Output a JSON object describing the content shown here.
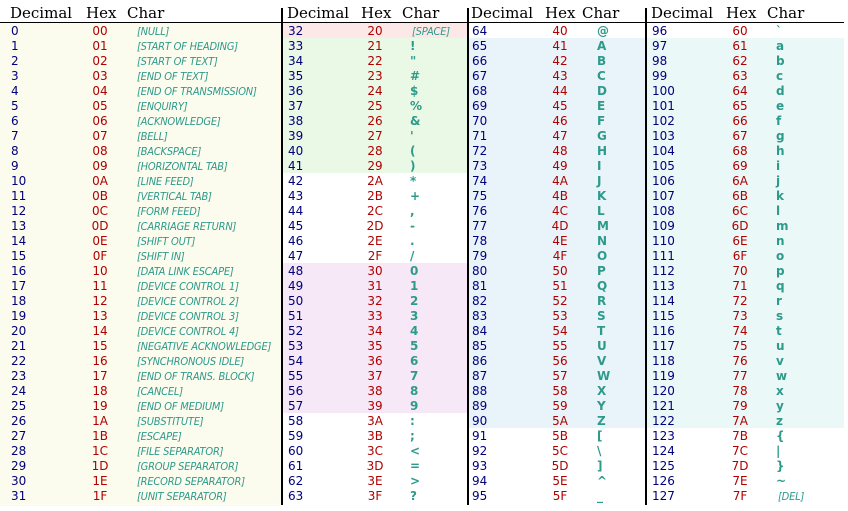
{
  "headers": [
    {
      "decimal": "Decimal",
      "hex": "Hex",
      "char": "Char"
    },
    {
      "decimal": "Decimal",
      "hex": "Hex",
      "char": "Char"
    },
    {
      "decimal": "Decimal",
      "hex": "Hex",
      "char": "Char"
    },
    {
      "decimal": "Decimal",
      "hex": "Hex",
      "char": "Char"
    }
  ],
  "colors": {
    "decimal": "#00007a",
    "hex": "#b00000",
    "char": "#2e9a8a",
    "band_control": "#fbfbee",
    "band_space": "#fde8e8",
    "band_punct": "#eaf8e6",
    "band_digits": "#f6e8f6",
    "band_upper": "#e8f4fa",
    "band_lower": "#eaf8f8"
  },
  "columns": [
    {
      "rows": [
        {
          "dec": "0",
          "hex": "00",
          "char": "[NULL]"
        },
        {
          "dec": "1",
          "hex": "01",
          "char": "[START OF HEADING]"
        },
        {
          "dec": "2",
          "hex": "02",
          "char": "[START OF TEXT]"
        },
        {
          "dec": "3",
          "hex": "03",
          "char": "[END OF TEXT]"
        },
        {
          "dec": "4",
          "hex": "04",
          "char": "[END OF TRANSMISSION]"
        },
        {
          "dec": "5",
          "hex": "05",
          "char": "[ENQUIRY]"
        },
        {
          "dec": "6",
          "hex": "06",
          "char": "[ACKNOWLEDGE]"
        },
        {
          "dec": "7",
          "hex": "07",
          "char": "[BELL]"
        },
        {
          "dec": "8",
          "hex": "08",
          "char": "[BACKSPACE]"
        },
        {
          "dec": "9",
          "hex": "09",
          "char": "[HORIZONTAL TAB]"
        },
        {
          "dec": "10",
          "hex": "0A",
          "char": "[LINE FEED]"
        },
        {
          "dec": "11",
          "hex": "0B",
          "char": "[VERTICAL TAB]"
        },
        {
          "dec": "12",
          "hex": "0C",
          "char": "[FORM FEED]"
        },
        {
          "dec": "13",
          "hex": "0D",
          "char": "[CARRIAGE RETURN]"
        },
        {
          "dec": "14",
          "hex": "0E",
          "char": "[SHIFT OUT]"
        },
        {
          "dec": "15",
          "hex": "0F",
          "char": "[SHIFT IN]"
        },
        {
          "dec": "16",
          "hex": "10",
          "char": "[DATA LINK ESCAPE]"
        },
        {
          "dec": "17",
          "hex": "11",
          "char": "[DEVICE CONTROL 1]"
        },
        {
          "dec": "18",
          "hex": "12",
          "char": "[DEVICE CONTROL 2]"
        },
        {
          "dec": "19",
          "hex": "13",
          "char": "[DEVICE CONTROL 3]"
        },
        {
          "dec": "20",
          "hex": "14",
          "char": "[DEVICE CONTROL 4]"
        },
        {
          "dec": "21",
          "hex": "15",
          "char": "[NEGATIVE ACKNOWLEDGE]"
        },
        {
          "dec": "22",
          "hex": "16",
          "char": "[SYNCHRONOUS IDLE]"
        },
        {
          "dec": "23",
          "hex": "17",
          "char": "[END OF TRANS. BLOCK]"
        },
        {
          "dec": "24",
          "hex": "18",
          "char": "[CANCEL]"
        },
        {
          "dec": "25",
          "hex": "19",
          "char": "[END OF MEDIUM]"
        },
        {
          "dec": "26",
          "hex": "1A",
          "char": "[SUBSTITUTE]"
        },
        {
          "dec": "27",
          "hex": "1B",
          "char": "[ESCAPE]"
        },
        {
          "dec": "28",
          "hex": "1C",
          "char": "[FILE SEPARATOR]"
        },
        {
          "dec": "29",
          "hex": "1D",
          "char": "[GROUP SEPARATOR]"
        },
        {
          "dec": "30",
          "hex": "1E",
          "char": "[RECORD SEPARATOR]"
        },
        {
          "dec": "31",
          "hex": "1F",
          "char": "[UNIT SEPARATOR]"
        }
      ]
    },
    {
      "rows": [
        {
          "dec": "32",
          "hex": "20",
          "char": "[SPACE]"
        },
        {
          "dec": "33",
          "hex": "21",
          "char": "!"
        },
        {
          "dec": "34",
          "hex": "22",
          "char": "\""
        },
        {
          "dec": "35",
          "hex": "23",
          "char": "#"
        },
        {
          "dec": "36",
          "hex": "24",
          "char": "$"
        },
        {
          "dec": "37",
          "hex": "25",
          "char": "%"
        },
        {
          "dec": "38",
          "hex": "26",
          "char": "&"
        },
        {
          "dec": "39",
          "hex": "27",
          "char": "'"
        },
        {
          "dec": "40",
          "hex": "28",
          "char": "("
        },
        {
          "dec": "41",
          "hex": "29",
          "char": ")"
        },
        {
          "dec": "42",
          "hex": "2A",
          "char": "*"
        },
        {
          "dec": "43",
          "hex": "2B",
          "char": "+"
        },
        {
          "dec": "44",
          "hex": "2C",
          "char": ","
        },
        {
          "dec": "45",
          "hex": "2D",
          "char": "-"
        },
        {
          "dec": "46",
          "hex": "2E",
          "char": "."
        },
        {
          "dec": "47",
          "hex": "2F",
          "char": "/"
        },
        {
          "dec": "48",
          "hex": "30",
          "char": "0"
        },
        {
          "dec": "49",
          "hex": "31",
          "char": "1"
        },
        {
          "dec": "50",
          "hex": "32",
          "char": "2"
        },
        {
          "dec": "51",
          "hex": "33",
          "char": "3"
        },
        {
          "dec": "52",
          "hex": "34",
          "char": "4"
        },
        {
          "dec": "53",
          "hex": "35",
          "char": "5"
        },
        {
          "dec": "54",
          "hex": "36",
          "char": "6"
        },
        {
          "dec": "55",
          "hex": "37",
          "char": "7"
        },
        {
          "dec": "56",
          "hex": "38",
          "char": "8"
        },
        {
          "dec": "57",
          "hex": "39",
          "char": "9"
        },
        {
          "dec": "58",
          "hex": "3A",
          "char": ":"
        },
        {
          "dec": "59",
          "hex": "3B",
          "char": ";"
        },
        {
          "dec": "60",
          "hex": "3C",
          "char": "<"
        },
        {
          "dec": "61",
          "hex": "3D",
          "char": "="
        },
        {
          "dec": "62",
          "hex": "3E",
          "char": ">"
        },
        {
          "dec": "63",
          "hex": "3F",
          "char": "?"
        }
      ]
    },
    {
      "rows": [
        {
          "dec": "64",
          "hex": "40",
          "char": "@"
        },
        {
          "dec": "65",
          "hex": "41",
          "char": "A"
        },
        {
          "dec": "66",
          "hex": "42",
          "char": "B"
        },
        {
          "dec": "67",
          "hex": "43",
          "char": "C"
        },
        {
          "dec": "68",
          "hex": "44",
          "char": "D"
        },
        {
          "dec": "69",
          "hex": "45",
          "char": "E"
        },
        {
          "dec": "70",
          "hex": "46",
          "char": "F"
        },
        {
          "dec": "71",
          "hex": "47",
          "char": "G"
        },
        {
          "dec": "72",
          "hex": "48",
          "char": "H"
        },
        {
          "dec": "73",
          "hex": "49",
          "char": "I"
        },
        {
          "dec": "74",
          "hex": "4A",
          "char": "J"
        },
        {
          "dec": "75",
          "hex": "4B",
          "char": "K"
        },
        {
          "dec": "76",
          "hex": "4C",
          "char": "L"
        },
        {
          "dec": "77",
          "hex": "4D",
          "char": "M"
        },
        {
          "dec": "78",
          "hex": "4E",
          "char": "N"
        },
        {
          "dec": "79",
          "hex": "4F",
          "char": "O"
        },
        {
          "dec": "80",
          "hex": "50",
          "char": "P"
        },
        {
          "dec": "81",
          "hex": "51",
          "char": "Q"
        },
        {
          "dec": "82",
          "hex": "52",
          "char": "R"
        },
        {
          "dec": "83",
          "hex": "53",
          "char": "S"
        },
        {
          "dec": "84",
          "hex": "54",
          "char": "T"
        },
        {
          "dec": "85",
          "hex": "55",
          "char": "U"
        },
        {
          "dec": "86",
          "hex": "56",
          "char": "V"
        },
        {
          "dec": "87",
          "hex": "57",
          "char": "W"
        },
        {
          "dec": "88",
          "hex": "58",
          "char": "X"
        },
        {
          "dec": "89",
          "hex": "59",
          "char": "Y"
        },
        {
          "dec": "90",
          "hex": "5A",
          "char": "Z"
        },
        {
          "dec": "91",
          "hex": "5B",
          "char": "["
        },
        {
          "dec": "92",
          "hex": "5C",
          "char": "\\"
        },
        {
          "dec": "93",
          "hex": "5D",
          "char": "]"
        },
        {
          "dec": "94",
          "hex": "5E",
          "char": "^"
        },
        {
          "dec": "95",
          "hex": "5F",
          "char": "_"
        }
      ]
    },
    {
      "rows": [
        {
          "dec": "96",
          "hex": "60",
          "char": "`"
        },
        {
          "dec": "97",
          "hex": "61",
          "char": "a"
        },
        {
          "dec": "98",
          "hex": "62",
          "char": "b"
        },
        {
          "dec": "99",
          "hex": "63",
          "char": "c"
        },
        {
          "dec": "100",
          "hex": "64",
          "char": "d"
        },
        {
          "dec": "101",
          "hex": "65",
          "char": "e"
        },
        {
          "dec": "102",
          "hex": "66",
          "char": "f"
        },
        {
          "dec": "103",
          "hex": "67",
          "char": "g"
        },
        {
          "dec": "104",
          "hex": "68",
          "char": "h"
        },
        {
          "dec": "105",
          "hex": "69",
          "char": "i"
        },
        {
          "dec": "106",
          "hex": "6A",
          "char": "j"
        },
        {
          "dec": "107",
          "hex": "6B",
          "char": "k"
        },
        {
          "dec": "108",
          "hex": "6C",
          "char": "l"
        },
        {
          "dec": "109",
          "hex": "6D",
          "char": "m"
        },
        {
          "dec": "110",
          "hex": "6E",
          "char": "n"
        },
        {
          "dec": "111",
          "hex": "6F",
          "char": "o"
        },
        {
          "dec": "112",
          "hex": "70",
          "char": "p"
        },
        {
          "dec": "113",
          "hex": "71",
          "char": "q"
        },
        {
          "dec": "114",
          "hex": "72",
          "char": "r"
        },
        {
          "dec": "115",
          "hex": "73",
          "char": "s"
        },
        {
          "dec": "116",
          "hex": "74",
          "char": "t"
        },
        {
          "dec": "117",
          "hex": "75",
          "char": "u"
        },
        {
          "dec": "118",
          "hex": "76",
          "char": "v"
        },
        {
          "dec": "119",
          "hex": "77",
          "char": "w"
        },
        {
          "dec": "120",
          "hex": "78",
          "char": "x"
        },
        {
          "dec": "121",
          "hex": "79",
          "char": "y"
        },
        {
          "dec": "122",
          "hex": "7A",
          "char": "z"
        },
        {
          "dec": "123",
          "hex": "7B",
          "char": "{"
        },
        {
          "dec": "124",
          "hex": "7C",
          "char": "|"
        },
        {
          "dec": "125",
          "hex": "7D",
          "char": "}"
        },
        {
          "dec": "126",
          "hex": "7E",
          "char": "~"
        },
        {
          "dec": "127",
          "hex": "7F",
          "char": "[DEL]"
        }
      ]
    }
  ]
}
